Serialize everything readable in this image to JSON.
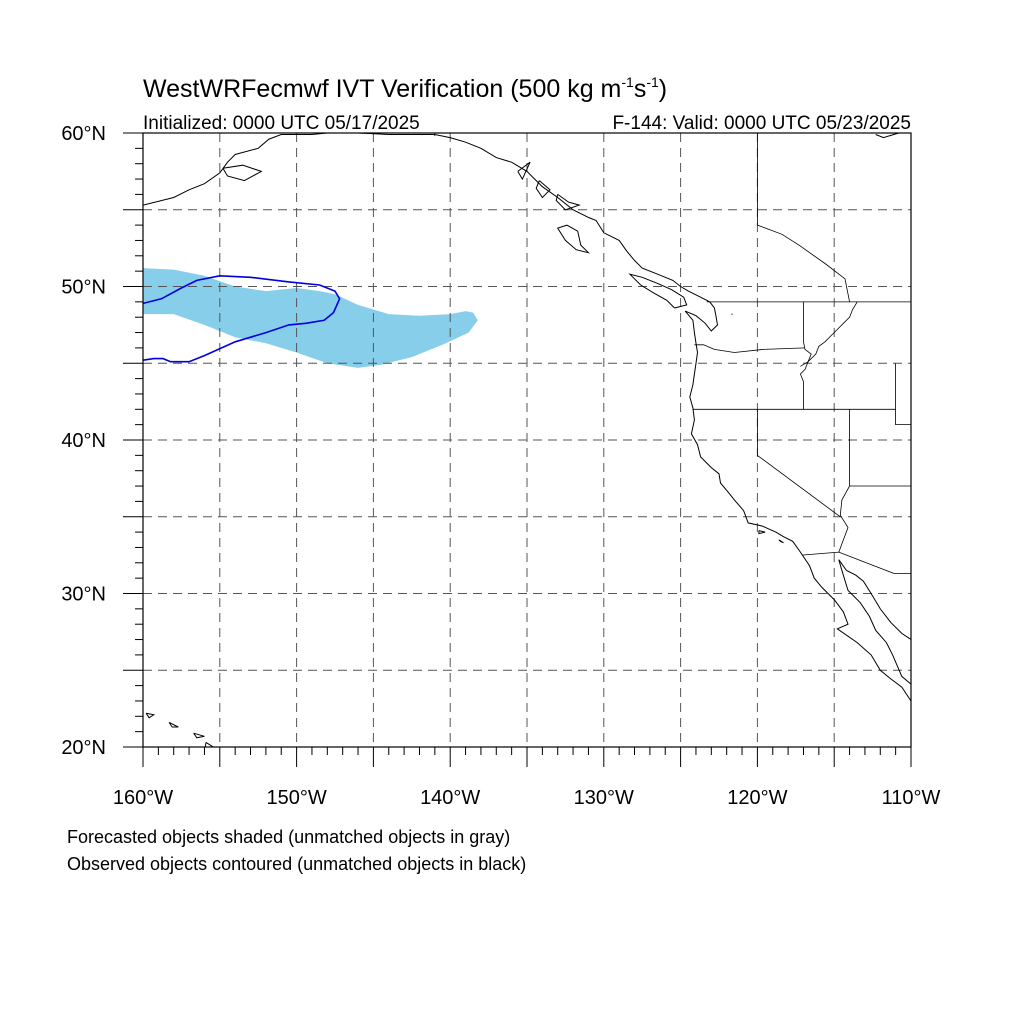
{
  "title": {
    "main": "WestWRFecmwf IVT Verification (500 kg m",
    "sup1": "-1",
    "mid": "s",
    "sup2": "-1",
    "close": ")"
  },
  "subtitle": {
    "left": "Initialized: 0000 UTC 05/17/2025",
    "right": "F-144: Valid: 0000 UTC 05/23/2025"
  },
  "axes": {
    "lat_labels": [
      {
        "lat": 60,
        "text": "60°N"
      },
      {
        "lat": 50,
        "text": "50°N"
      },
      {
        "lat": 40,
        "text": "40°N"
      },
      {
        "lat": 30,
        "text": "30°N"
      },
      {
        "lat": 20,
        "text": "20°N"
      }
    ],
    "lon_labels": [
      {
        "lon": -160,
        "text": "160°W"
      },
      {
        "lon": -150,
        "text": "150°W"
      },
      {
        "lon": -140,
        "text": "140°W"
      },
      {
        "lon": -130,
        "text": "130°W"
      },
      {
        "lon": -120,
        "text": "120°W"
      },
      {
        "lon": -110,
        "text": "110°W"
      }
    ],
    "lat_range": [
      20,
      60
    ],
    "lon_range": [
      -160,
      -110
    ],
    "grid_step_deg": 5,
    "grid": true
  },
  "legend": {
    "line1": "Forecasted objects shaded (unmatched objects in gray)",
    "line2": "Observed objects contoured (unmatched objects in black)"
  },
  "colors": {
    "forecast_fill": "#87ceeb",
    "observed_line": "#0000dd",
    "coast": "#000000",
    "grid": "#555555"
  },
  "objects": {
    "forecast": [
      [
        -160,
        51.2
      ],
      [
        -158,
        51.1
      ],
      [
        -156,
        50.7
      ],
      [
        -154,
        50.0
      ],
      [
        -152,
        49.7
      ],
      [
        -150,
        49.9
      ],
      [
        -148.5,
        49.7
      ],
      [
        -147.5,
        49.5
      ],
      [
        -146,
        48.8
      ],
      [
        -144,
        48.2
      ],
      [
        -142,
        48.1
      ],
      [
        -140,
        48.2
      ],
      [
        -139,
        48.4
      ],
      [
        -138.5,
        48.3
      ],
      [
        -138.2,
        47.8
      ],
      [
        -138.8,
        47.0
      ],
      [
        -140.5,
        46.2
      ],
      [
        -142.5,
        45.4
      ],
      [
        -144.5,
        44.9
      ],
      [
        -146,
        44.7
      ],
      [
        -148,
        45.0
      ],
      [
        -150,
        45.7
      ],
      [
        -152,
        46.3
      ],
      [
        -154,
        46.7
      ],
      [
        -156,
        47.5
      ],
      [
        -158,
        48.2
      ],
      [
        -160,
        48.2
      ]
    ],
    "observed": [
      [
        -160,
        48.9
      ],
      [
        -158.8,
        49.2
      ],
      [
        -157.5,
        49.9
      ],
      [
        -156.5,
        50.4
      ],
      [
        -155,
        50.7
      ],
      [
        -153,
        50.6
      ],
      [
        -150.5,
        50.3
      ],
      [
        -148.5,
        50.1
      ],
      [
        -147.5,
        49.7
      ],
      [
        -147.2,
        49.2
      ],
      [
        -147.6,
        48.3
      ],
      [
        -148.2,
        47.8
      ],
      [
        -149.4,
        47.6
      ],
      [
        -150.5,
        47.5
      ],
      [
        -152,
        47.0
      ],
      [
        -154,
        46.4
      ],
      [
        -156,
        45.5
      ],
      [
        -157,
        45.1
      ],
      [
        -158.2,
        45.1
      ],
      [
        -158.7,
        45.3
      ],
      [
        -159.3,
        45.3
      ],
      [
        -160,
        45.2
      ]
    ]
  },
  "map": {
    "coast": [
      [
        [
          -160,
          55.3
        ],
        [
          -158,
          55.8
        ],
        [
          -157,
          56.3
        ],
        [
          -156,
          56.7
        ],
        [
          -155,
          57.4
        ],
        [
          -154.5,
          58.1
        ],
        [
          -154,
          58.6
        ],
        [
          -152.5,
          59.0
        ],
        [
          -151.8,
          59.6
        ],
        [
          -151,
          59.9
        ],
        [
          -150,
          59.9
        ],
        [
          -149,
          59.9
        ],
        [
          -148,
          60.0
        ],
        [
          -146,
          60.0
        ],
        [
          -144,
          59.9
        ],
        [
          -143,
          59.9
        ],
        [
          -141,
          59.9
        ],
        [
          -140,
          59.7
        ],
        [
          -139,
          59.4
        ],
        [
          -138,
          59.0
        ],
        [
          -137,
          58.4
        ],
        [
          -136,
          58.1
        ],
        [
          -135,
          57.5
        ],
        [
          -134.5,
          57.0
        ],
        [
          -134,
          56.5
        ],
        [
          -133,
          55.8
        ],
        [
          -132,
          55.0
        ],
        [
          -131,
          54.5
        ],
        [
          -130.5,
          54.3
        ],
        [
          -130,
          53.5
        ],
        [
          -129,
          53.0
        ],
        [
          -128.5,
          52.3
        ],
        [
          -128,
          51.7
        ],
        [
          -127.5,
          51.2
        ],
        [
          -126.5,
          50.8
        ],
        [
          -125.5,
          50.4
        ],
        [
          -125,
          50.0
        ],
        [
          -124.5,
          49.7
        ],
        [
          -123.7,
          49.3
        ],
        [
          -123.1,
          49.0
        ],
        [
          -122.8,
          48.6
        ],
        [
          -122.7,
          48.1
        ],
        [
          -122.6,
          47.5
        ],
        [
          -123.0,
          47.1
        ],
        [
          -123.4,
          47.6
        ],
        [
          -124.0,
          48.1
        ],
        [
          -124.7,
          48.4
        ],
        [
          -124.2,
          47.8
        ],
        [
          -124.1,
          47.0
        ],
        [
          -124.0,
          46.3
        ],
        [
          -123.9,
          45.7
        ],
        [
          -124.0,
          45.0
        ],
        [
          -124.1,
          44.3
        ],
        [
          -124.2,
          43.6
        ],
        [
          -124.4,
          42.8
        ],
        [
          -124.2,
          42.1
        ],
        [
          -124.1,
          41.3
        ],
        [
          -124.3,
          40.4
        ],
        [
          -123.9,
          39.7
        ],
        [
          -123.7,
          38.9
        ],
        [
          -123.0,
          38.2
        ],
        [
          -122.5,
          37.8
        ],
        [
          -122.4,
          37.2
        ],
        [
          -121.9,
          36.6
        ],
        [
          -121.5,
          36.1
        ],
        [
          -120.9,
          35.4
        ],
        [
          -120.6,
          34.6
        ],
        [
          -119.7,
          34.4
        ],
        [
          -118.8,
          34.0
        ],
        [
          -118.3,
          33.7
        ],
        [
          -117.7,
          33.4
        ],
        [
          -117.2,
          32.7
        ],
        [
          -116.6,
          31.8
        ],
        [
          -116.3,
          31.0
        ],
        [
          -115.8,
          30.4
        ],
        [
          -115.0,
          29.6
        ],
        [
          -114.4,
          28.8
        ],
        [
          -114.1,
          28.0
        ],
        [
          -114.8,
          27.7
        ],
        [
          -113.5,
          26.8
        ],
        [
          -112.6,
          26.0
        ],
        [
          -112.0,
          25.0
        ],
        [
          -111.4,
          24.5
        ],
        [
          -110.6,
          23.9
        ],
        [
          -110.0,
          23.0
        ]
      ],
      [
        [
          -114.7,
          32.2
        ],
        [
          -114.2,
          31.5
        ],
        [
          -113.6,
          31.2
        ],
        [
          -113.1,
          30.8
        ],
        [
          -112.6,
          30.0
        ],
        [
          -112.0,
          29.0
        ],
        [
          -111.3,
          28.1
        ],
        [
          -110.6,
          27.4
        ],
        [
          -110.0,
          27.0
        ]
      ],
      [
        [
          -114.7,
          32.2
        ],
        [
          -114.5,
          31.5
        ],
        [
          -114.1,
          30.2
        ],
        [
          -113.3,
          29.4
        ],
        [
          -112.7,
          28.5
        ],
        [
          -112.3,
          27.6
        ],
        [
          -111.6,
          26.8
        ],
        [
          -111.2,
          26.0
        ],
        [
          -110.6,
          24.6
        ],
        [
          -110.0,
          24.1
        ]
      ],
      [
        [
          -125.4,
          48.6
        ],
        [
          -124.6,
          48.8
        ],
        [
          -124.8,
          49.3
        ],
        [
          -125.6,
          49.8
        ],
        [
          -126.5,
          50.2
        ],
        [
          -127.5,
          50.6
        ],
        [
          -128.3,
          50.8
        ],
        [
          -127.6,
          50.1
        ],
        [
          -126.8,
          49.6
        ],
        [
          -125.9,
          49.1
        ],
        [
          -125.4,
          48.6
        ]
      ],
      [
        [
          -132.4,
          54.0
        ],
        [
          -131.7,
          53.6
        ],
        [
          -131.5,
          52.7
        ],
        [
          -131.0,
          52.2
        ],
        [
          -131.8,
          52.4
        ],
        [
          -132.5,
          53.0
        ],
        [
          -133.0,
          53.8
        ],
        [
          -132.4,
          54.0
        ]
      ],
      [
        [
          -154.8,
          57.7
        ],
        [
          -153.5,
          57.9
        ],
        [
          -152.3,
          57.5
        ],
        [
          -153.4,
          56.9
        ],
        [
          -154.5,
          57.2
        ],
        [
          -154.8,
          57.7
        ]
      ],
      [
        [
          -135.6,
          57.5
        ],
        [
          -134.8,
          58.1
        ],
        [
          -135.3,
          57.0
        ],
        [
          -135.6,
          57.5
        ]
      ],
      [
        [
          -134.2,
          56.9
        ],
        [
          -133.5,
          56.3
        ],
        [
          -134.0,
          55.8
        ],
        [
          -134.4,
          56.4
        ],
        [
          -134.2,
          56.9
        ]
      ],
      [
        [
          -133.0,
          56.0
        ],
        [
          -132.3,
          55.5
        ],
        [
          -131.6,
          55.3
        ],
        [
          -132.5,
          55.0
        ],
        [
          -133.1,
          55.6
        ],
        [
          -133.0,
          56.0
        ]
      ],
      [
        [
          -155.9,
          20.3
        ],
        [
          -155.1,
          19.8
        ],
        [
          -155.5,
          19.1
        ],
        [
          -156.0,
          19.7
        ],
        [
          -155.9,
          20.3
        ]
      ],
      [
        [
          -156.7,
          20.9
        ],
        [
          -156.0,
          20.7
        ],
        [
          -156.5,
          20.6
        ],
        [
          -156.7,
          20.9
        ]
      ],
      [
        [
          -158.3,
          21.6
        ],
        [
          -157.7,
          21.3
        ],
        [
          -158.1,
          21.3
        ],
        [
          -158.3,
          21.6
        ]
      ],
      [
        [
          -159.8,
          22.2
        ],
        [
          -159.3,
          22.1
        ],
        [
          -159.6,
          21.9
        ],
        [
          -159.8,
          22.2
        ]
      ],
      [
        [
          -119.9,
          34.1
        ],
        [
          -119.5,
          34.0
        ],
        [
          -119.9,
          33.9
        ],
        [
          -119.9,
          34.1
        ]
      ],
      [
        [
          -118.6,
          33.5
        ],
        [
          -118.3,
          33.3
        ],
        [
          -118.5,
          33.4
        ],
        [
          -118.6,
          33.5
        ]
      ],
      [
        [
          -110.8,
          60.0
        ],
        [
          -111.8,
          59.7
        ],
        [
          -112.3,
          59.9
        ]
      ]
    ],
    "borders": [
      [
        [
          -141,
          60
        ],
        [
          -141,
          59.8
        ]
      ],
      [
        [
          -123.3,
          49
        ],
        [
          -110,
          49
        ]
      ],
      [
        [
          -117.0,
          49
        ],
        [
          -117.0,
          46.4
        ],
        [
          -116.9,
          45.9
        ],
        [
          -116.5,
          45.6
        ],
        [
          -116.9,
          44.6
        ],
        [
          -117.2,
          44.3
        ],
        [
          -117.0,
          43.8
        ],
        [
          -117.0,
          42.0
        ]
      ],
      [
        [
          -124.1,
          46.2
        ],
        [
          -123.5,
          46.2
        ],
        [
          -122.8,
          45.9
        ],
        [
          -121.5,
          45.7
        ],
        [
          -119.6,
          45.9
        ],
        [
          -116.9,
          46.0
        ]
      ],
      [
        [
          -124.2,
          42.0
        ],
        [
          -111.0,
          42.0
        ]
      ],
      [
        [
          -120,
          42
        ],
        [
          -120,
          39
        ],
        [
          -114.6,
          35.0
        ]
      ],
      [
        [
          -114.0,
          42
        ],
        [
          -114.0,
          37.0
        ],
        [
          -114.5,
          36.1
        ],
        [
          -114.6,
          35.1
        ],
        [
          -114.1,
          34.3
        ],
        [
          -114.7,
          32.7
        ]
      ],
      [
        [
          -114.0,
          37.0
        ],
        [
          -110,
          37.0
        ]
      ],
      [
        [
          -111.0,
          45
        ],
        [
          -111.0,
          41.0
        ],
        [
          -110,
          41.0
        ]
      ],
      [
        [
          -117.1,
          32.5
        ],
        [
          -114.7,
          32.7
        ],
        [
          -111.1,
          31.3
        ],
        [
          -110,
          31.3
        ]
      ],
      [
        [
          -113.5,
          49
        ],
        [
          -113.8,
          48.5
        ],
        [
          -114.0,
          48.0
        ],
        [
          -114.4,
          47.6
        ],
        [
          -114.8,
          47.2
        ],
        [
          -115.2,
          46.8
        ],
        [
          -115.6,
          46.4
        ],
        [
          -116.0,
          46.1
        ],
        [
          -116.2,
          45.6
        ],
        [
          -116.7,
          45.1
        ],
        [
          -117.2,
          44.8
        ]
      ],
      [
        [
          -120,
          60
        ],
        [
          -120,
          54.0
        ],
        [
          -118.4,
          53.4
        ],
        [
          -117.3,
          52.7
        ],
        [
          -115.6,
          51.5
        ],
        [
          -114.3,
          50.5
        ],
        [
          -114.0,
          49.0
        ]
      ],
      [
        [
          -121.7,
          48.2
        ],
        [
          -121.6,
          48.2
        ]
      ]
    ]
  }
}
